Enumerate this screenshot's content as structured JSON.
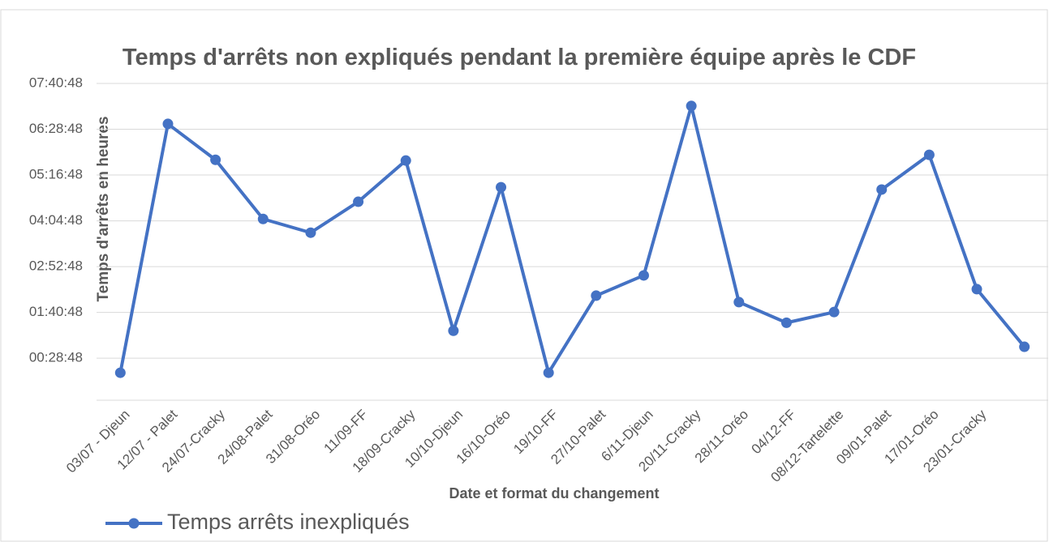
{
  "chart_data": {
    "type": "line",
    "title": "Temps d'arrêts non expliqués pendant la première équipe après le CDF",
    "x_label": "Date et format du changement",
    "y_label": "Temps d'arrêts en heures",
    "categories": [
      "03/07 - Djeun",
      "12/07 - Palet",
      "24/07-Cracky",
      "24/08-Palet",
      "31/08-Oréo",
      "11/09-FF",
      "18/09-Cracky",
      "10/10-Djeun",
      "16/10-Oréo",
      "19/10-FF",
      "27/10-Palet",
      "6/11-Djeun",
      "20/11-Cracky",
      "28/11-Oréo",
      "04/12-FF",
      "08/12-Tartelette",
      "09/01-Palet",
      "17/01-Oréo",
      "23/01-Cracky",
      null
    ],
    "series": [
      {
        "name": "Temps arrêts inexpliqués",
        "color": "#4472c4",
        "values": [
          0.1,
          6.62,
          5.68,
          4.13,
          3.77,
          4.58,
          5.66,
          1.2,
          4.96,
          0.1,
          2.12,
          2.65,
          7.09,
          1.95,
          1.41,
          1.69,
          4.9,
          5.81,
          2.29,
          0.78
        ]
      }
    ],
    "ylim": [
      -0.62,
      7.68
    ],
    "yticks": [
      {
        "value": 0.48,
        "label": "00:28:48"
      },
      {
        "value": 1.68,
        "label": "01:40:48"
      },
      {
        "value": 2.88,
        "label": "02:52:48"
      },
      {
        "value": 4.08,
        "label": "04:04:48"
      },
      {
        "value": 5.28,
        "label": "05:16:48"
      },
      {
        "value": 6.48,
        "label": "06:28:48"
      },
      {
        "value": 7.68,
        "label": "07:40:48"
      }
    ],
    "grid": true,
    "legend": "bottom-left"
  }
}
